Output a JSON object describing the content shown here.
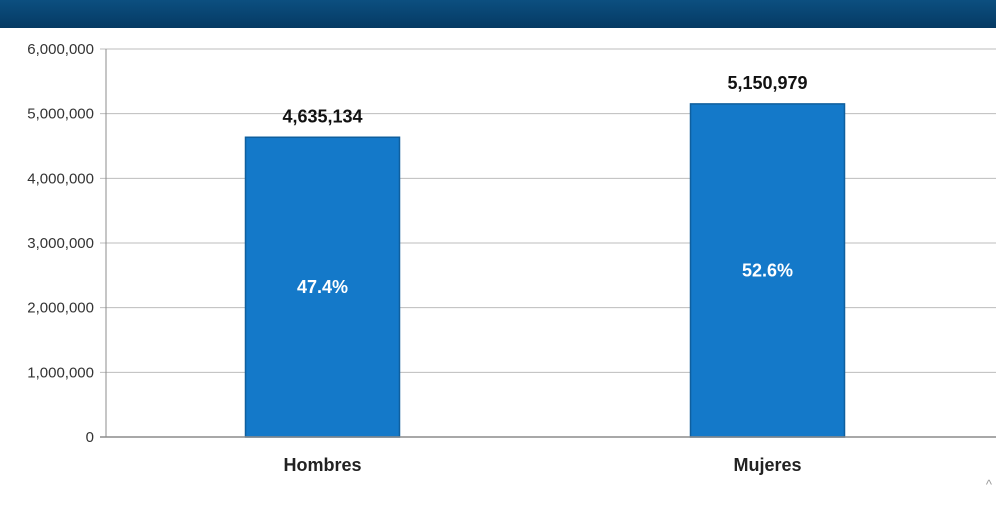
{
  "colors": {
    "header": "#053a63",
    "bar_fill": "#1479c9",
    "bar_stroke": "#0f5f9e",
    "grid": "#bdbdbd",
    "axis": "#8c8c8c"
  },
  "scroll_caret": "^",
  "chart_data": {
    "type": "bar",
    "categories": [
      "Hombres",
      "Mujeres"
    ],
    "values": [
      4635134,
      5150979
    ],
    "value_labels": [
      "4,635,134",
      "5,150,979"
    ],
    "percent_labels": [
      "47.4%",
      "52.6%"
    ],
    "ylim": [
      0,
      6000000
    ],
    "yticks": [
      0,
      1000000,
      2000000,
      3000000,
      4000000,
      5000000,
      6000000
    ],
    "ytick_labels": [
      "0",
      "1,000,000",
      "2,000,000",
      "3,000,000",
      "4,000,000",
      "5,000,000",
      "6,000,000"
    ],
    "grid": true
  }
}
